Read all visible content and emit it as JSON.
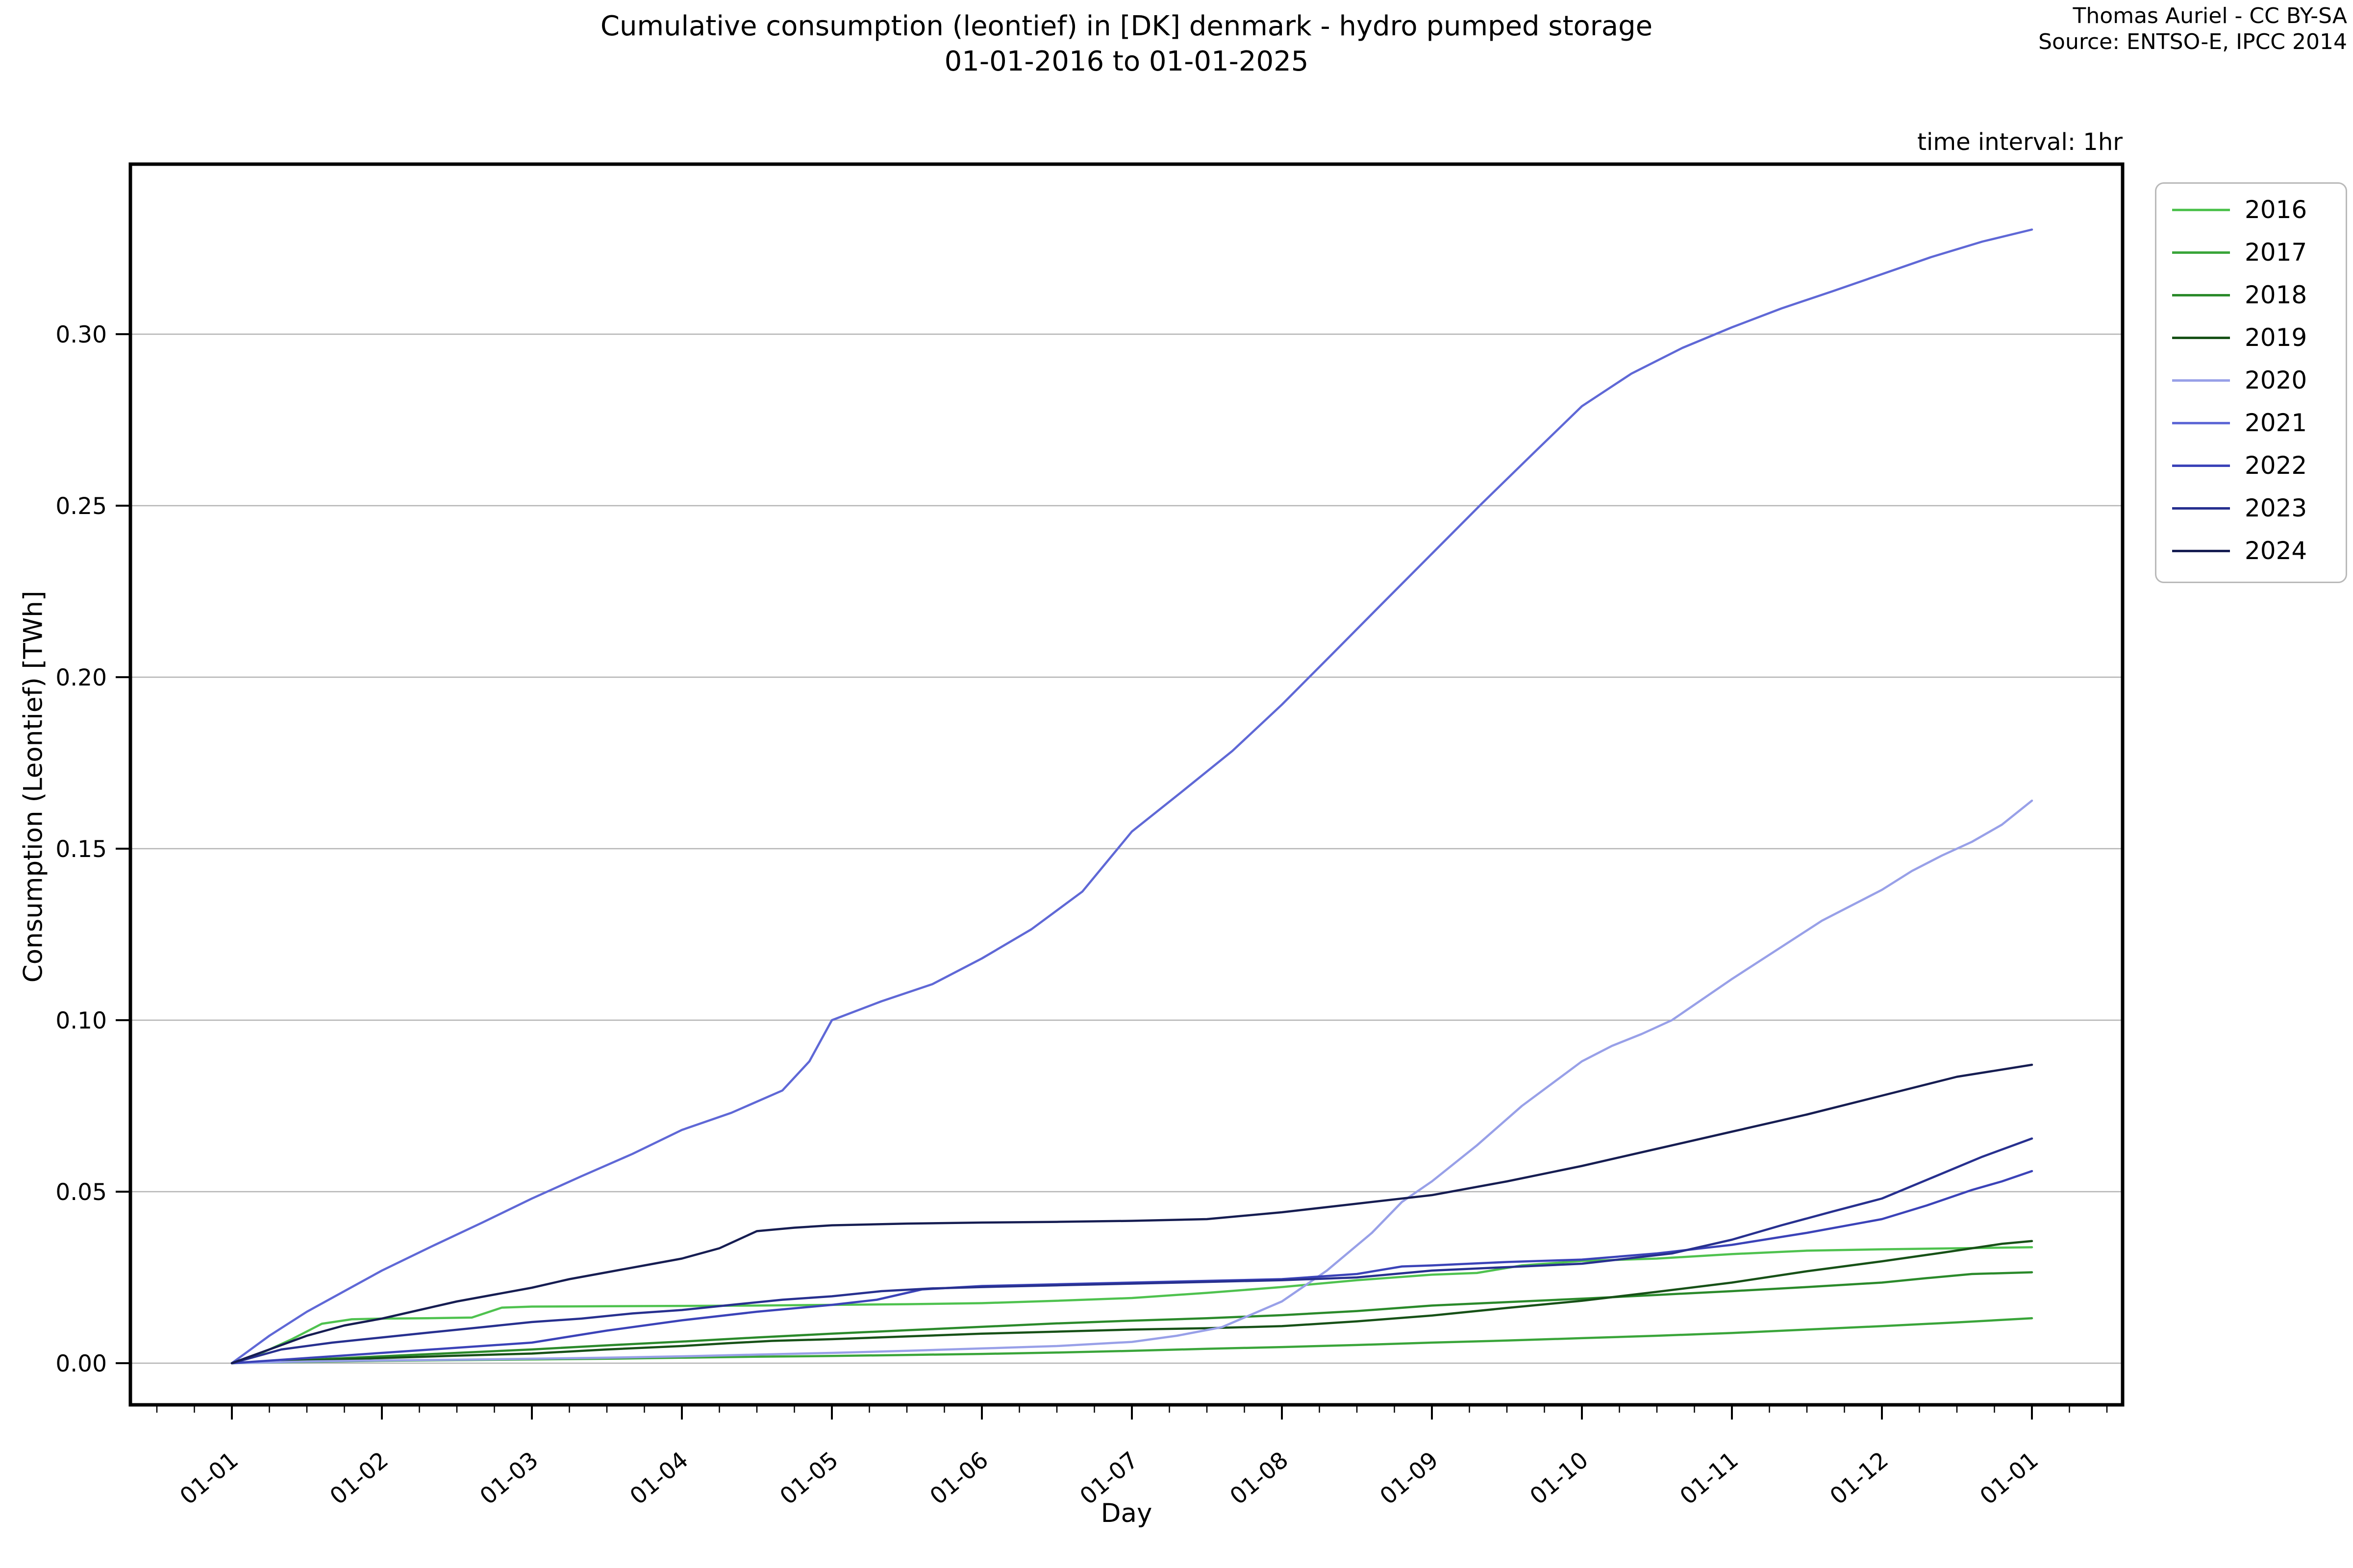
{
  "header": {
    "title_line1": "Cumulative consumption (leontief) in [DK] denmark - hydro pumped storage",
    "title_line2": "01-01-2016 to 01-01-2025",
    "attribution_line1": "Thomas Auriel - CC BY-SA",
    "attribution_line2": "Source: ENTSO-E, IPCC 2014",
    "time_interval_note": "time interval: 1hr"
  },
  "chart_data": {
    "type": "line",
    "xlabel": "Day",
    "ylabel": "Consumption (Leontief) [TWh]",
    "x_unit": "months_since_jan1",
    "x_tick_labels": [
      "01-01",
      "01-02",
      "01-03",
      "01-04",
      "01-05",
      "01-06",
      "01-07",
      "01-08",
      "01-09",
      "01-10",
      "01-11",
      "01-12",
      "01-01"
    ],
    "x_tick_months": [
      0,
      1,
      2,
      3,
      4,
      5,
      6,
      7,
      8,
      9,
      10,
      11,
      12
    ],
    "xlim_months": [
      -0.677,
      12.605
    ],
    "y_tick_labels": [
      "0.00",
      "0.05",
      "0.10",
      "0.15",
      "0.20",
      "0.25",
      "0.30"
    ],
    "y_tick_values": [
      0.0,
      0.05,
      0.1,
      0.15,
      0.2,
      0.25,
      0.3
    ],
    "ylim": [
      -0.0121,
      0.3496
    ],
    "grid": "horizontal",
    "grid_color": "#b5b5b5",
    "legend_position": "outside-upper-right",
    "series": [
      {
        "name": "2016",
        "color": "#4fc24f",
        "points": [
          [
            0,
            0
          ],
          [
            0.2,
            0.003
          ],
          [
            0.4,
            0.007
          ],
          [
            0.6,
            0.0115
          ],
          [
            0.8,
            0.0128
          ],
          [
            1,
            0.013
          ],
          [
            1.3,
            0.0131
          ],
          [
            1.6,
            0.0133
          ],
          [
            1.8,
            0.0162
          ],
          [
            2,
            0.0165
          ],
          [
            2.5,
            0.0166
          ],
          [
            3,
            0.0167
          ],
          [
            3.5,
            0.0168
          ],
          [
            4,
            0.017
          ],
          [
            4.5,
            0.0172
          ],
          [
            5,
            0.0175
          ],
          [
            5.5,
            0.0182
          ],
          [
            6,
            0.019
          ],
          [
            6.5,
            0.0205
          ],
          [
            7,
            0.0222
          ],
          [
            7.5,
            0.0242
          ],
          [
            8,
            0.0258
          ],
          [
            8.3,
            0.0263
          ],
          [
            8.6,
            0.0285
          ],
          [
            9,
            0.0298
          ],
          [
            9.5,
            0.0305
          ],
          [
            10,
            0.0318
          ],
          [
            10.5,
            0.0328
          ],
          [
            11,
            0.0332
          ],
          [
            11.5,
            0.0335
          ],
          [
            12,
            0.0338
          ]
        ]
      },
      {
        "name": "2017",
        "color": "#3aa53a",
        "points": [
          [
            0,
            0
          ],
          [
            0.5,
            0.0004
          ],
          [
            1,
            0.0007
          ],
          [
            1.5,
            0.0009
          ],
          [
            2,
            0.0011
          ],
          [
            2.5,
            0.0013
          ],
          [
            3,
            0.0016
          ],
          [
            3.5,
            0.0019
          ],
          [
            4,
            0.0021
          ],
          [
            4.5,
            0.0024
          ],
          [
            5,
            0.0027
          ],
          [
            5.5,
            0.0031
          ],
          [
            6,
            0.0036
          ],
          [
            6.5,
            0.0042
          ],
          [
            7,
            0.0047
          ],
          [
            7.5,
            0.0053
          ],
          [
            8,
            0.006
          ],
          [
            8.5,
            0.0066
          ],
          [
            9,
            0.0073
          ],
          [
            9.5,
            0.008
          ],
          [
            10,
            0.0088
          ],
          [
            10.5,
            0.0098
          ],
          [
            11,
            0.0108
          ],
          [
            11.5,
            0.0119
          ],
          [
            12,
            0.0131
          ]
        ]
      },
      {
        "name": "2018",
        "color": "#2b8a2b",
        "points": [
          [
            0,
            0
          ],
          [
            0.5,
            0.001
          ],
          [
            1,
            0.002
          ],
          [
            1.5,
            0.003
          ],
          [
            2,
            0.004
          ],
          [
            2.5,
            0.0052
          ],
          [
            3,
            0.0063
          ],
          [
            3.5,
            0.0075
          ],
          [
            4,
            0.0086
          ],
          [
            4.5,
            0.0096
          ],
          [
            5,
            0.0106
          ],
          [
            5.5,
            0.0116
          ],
          [
            6,
            0.0124
          ],
          [
            6.5,
            0.0131
          ],
          [
            7,
            0.014
          ],
          [
            7.5,
            0.0152
          ],
          [
            8,
            0.0168
          ],
          [
            8.5,
            0.0178
          ],
          [
            9,
            0.0188
          ],
          [
            9.5,
            0.0199
          ],
          [
            10,
            0.021
          ],
          [
            10.5,
            0.0222
          ],
          [
            11,
            0.0235
          ],
          [
            11.3,
            0.0248
          ],
          [
            11.6,
            0.026
          ],
          [
            12,
            0.0265
          ]
        ]
      },
      {
        "name": "2019",
        "color": "#175117",
        "points": [
          [
            0,
            0
          ],
          [
            0.5,
            0.0008
          ],
          [
            1,
            0.0015
          ],
          [
            1.5,
            0.0022
          ],
          [
            2,
            0.0028
          ],
          [
            2.5,
            0.004
          ],
          [
            3,
            0.005
          ],
          [
            3.3,
            0.0058
          ],
          [
            3.6,
            0.0065
          ],
          [
            4,
            0.007
          ],
          [
            4.5,
            0.0078
          ],
          [
            5,
            0.0086
          ],
          [
            5.5,
            0.0092
          ],
          [
            6,
            0.0098
          ],
          [
            6.5,
            0.0102
          ],
          [
            7,
            0.0108
          ],
          [
            7.5,
            0.0122
          ],
          [
            8,
            0.0139
          ],
          [
            8.5,
            0.0161
          ],
          [
            9,
            0.0182
          ],
          [
            9.5,
            0.0208
          ],
          [
            10,
            0.0235
          ],
          [
            10.5,
            0.0268
          ],
          [
            11,
            0.0297
          ],
          [
            11.4,
            0.0322
          ],
          [
            11.8,
            0.0348
          ],
          [
            12,
            0.0356
          ]
        ]
      },
      {
        "name": "2020",
        "color": "#98a0e8",
        "points": [
          [
            0,
            0
          ],
          [
            0.5,
            0.0005
          ],
          [
            1,
            0.0008
          ],
          [
            1.5,
            0.001
          ],
          [
            2,
            0.0013
          ],
          [
            2.5,
            0.0016
          ],
          [
            3,
            0.002
          ],
          [
            3.5,
            0.0025
          ],
          [
            4,
            0.003
          ],
          [
            4.5,
            0.0036
          ],
          [
            5,
            0.0043
          ],
          [
            5.5,
            0.005
          ],
          [
            6,
            0.0062
          ],
          [
            6.3,
            0.008
          ],
          [
            6.6,
            0.0105
          ],
          [
            7,
            0.018
          ],
          [
            7.3,
            0.027
          ],
          [
            7.6,
            0.038
          ],
          [
            7.8,
            0.047
          ],
          [
            8,
            0.053
          ],
          [
            8.3,
            0.0635
          ],
          [
            8.6,
            0.075
          ],
          [
            9,
            0.088
          ],
          [
            9.2,
            0.0925
          ],
          [
            9.4,
            0.096
          ],
          [
            9.6,
            0.1
          ],
          [
            9.8,
            0.106
          ],
          [
            10,
            0.112
          ],
          [
            10.3,
            0.1205
          ],
          [
            10.6,
            0.129
          ],
          [
            11,
            0.138
          ],
          [
            11.2,
            0.1435
          ],
          [
            11.4,
            0.148
          ],
          [
            11.6,
            0.152
          ],
          [
            11.8,
            0.157
          ],
          [
            12,
            0.164
          ]
        ]
      },
      {
        "name": "2021",
        "color": "#5f68d6",
        "points": [
          [
            0,
            0
          ],
          [
            0.25,
            0.008
          ],
          [
            0.5,
            0.015
          ],
          [
            0.75,
            0.021
          ],
          [
            1,
            0.027
          ],
          [
            1.33,
            0.034
          ],
          [
            1.67,
            0.041
          ],
          [
            2,
            0.048
          ],
          [
            2.33,
            0.0545
          ],
          [
            2.67,
            0.061
          ],
          [
            3,
            0.068
          ],
          [
            3.33,
            0.073
          ],
          [
            3.67,
            0.0795
          ],
          [
            3.85,
            0.088
          ],
          [
            4,
            0.1
          ],
          [
            4.33,
            0.1055
          ],
          [
            4.67,
            0.1105
          ],
          [
            5,
            0.118
          ],
          [
            5.33,
            0.1265
          ],
          [
            5.67,
            0.1375
          ],
          [
            6,
            0.155
          ],
          [
            6.33,
            0.1665
          ],
          [
            6.67,
            0.1785
          ],
          [
            7,
            0.192
          ],
          [
            7.33,
            0.2065
          ],
          [
            7.67,
            0.2215
          ],
          [
            8,
            0.236
          ],
          [
            8.33,
            0.2505
          ],
          [
            8.67,
            0.265
          ],
          [
            9,
            0.279
          ],
          [
            9.33,
            0.2885
          ],
          [
            9.67,
            0.296
          ],
          [
            10,
            0.302
          ],
          [
            10.33,
            0.3075
          ],
          [
            10.67,
            0.3125
          ],
          [
            11,
            0.3175
          ],
          [
            11.33,
            0.3225
          ],
          [
            11.67,
            0.327
          ],
          [
            12,
            0.3305
          ]
        ]
      },
      {
        "name": "2022",
        "color": "#3b43b8",
        "points": [
          [
            0,
            0
          ],
          [
            0.5,
            0.0015
          ],
          [
            1,
            0.003
          ],
          [
            1.5,
            0.0045
          ],
          [
            2,
            0.006
          ],
          [
            2.5,
            0.0095
          ],
          [
            3,
            0.0125
          ],
          [
            3.5,
            0.015
          ],
          [
            4,
            0.017
          ],
          [
            4.3,
            0.0185
          ],
          [
            4.6,
            0.0215
          ],
          [
            5,
            0.0225
          ],
          [
            5.5,
            0.023
          ],
          [
            6,
            0.0235
          ],
          [
            6.5,
            0.024
          ],
          [
            7,
            0.0245
          ],
          [
            7.5,
            0.026
          ],
          [
            7.8,
            0.0282
          ],
          [
            8,
            0.0285
          ],
          [
            8.5,
            0.0295
          ],
          [
            9,
            0.0302
          ],
          [
            9.5,
            0.032
          ],
          [
            10,
            0.0345
          ],
          [
            10.5,
            0.038
          ],
          [
            11,
            0.042
          ],
          [
            11.3,
            0.046
          ],
          [
            11.6,
            0.0505
          ],
          [
            11.8,
            0.053
          ],
          [
            12,
            0.056
          ]
        ]
      },
      {
        "name": "2023",
        "color": "#27308f",
        "points": [
          [
            0,
            0
          ],
          [
            0.33,
            0.004
          ],
          [
            0.67,
            0.006
          ],
          [
            1,
            0.0075
          ],
          [
            1.33,
            0.009
          ],
          [
            1.67,
            0.0105
          ],
          [
            2,
            0.012
          ],
          [
            2.33,
            0.013
          ],
          [
            2.67,
            0.0145
          ],
          [
            3,
            0.0155
          ],
          [
            3.33,
            0.017
          ],
          [
            3.67,
            0.0185
          ],
          [
            4,
            0.0195
          ],
          [
            4.33,
            0.021
          ],
          [
            4.67,
            0.0218
          ],
          [
            5,
            0.0222
          ],
          [
            5.5,
            0.0227
          ],
          [
            6,
            0.0232
          ],
          [
            6.5,
            0.0237
          ],
          [
            7,
            0.0242
          ],
          [
            7.5,
            0.025
          ],
          [
            8,
            0.027
          ],
          [
            8.5,
            0.028
          ],
          [
            9,
            0.029
          ],
          [
            9.3,
            0.0305
          ],
          [
            9.6,
            0.032
          ],
          [
            9.8,
            0.034
          ],
          [
            10,
            0.036
          ],
          [
            10.33,
            0.0402
          ],
          [
            10.67,
            0.0442
          ],
          [
            11,
            0.048
          ],
          [
            11.33,
            0.054
          ],
          [
            11.67,
            0.0602
          ],
          [
            12,
            0.0655
          ]
        ]
      },
      {
        "name": "2024",
        "color": "#161d52",
        "points": [
          [
            0,
            0
          ],
          [
            0.25,
            0.004
          ],
          [
            0.5,
            0.008
          ],
          [
            0.75,
            0.011
          ],
          [
            1,
            0.013
          ],
          [
            1.25,
            0.0155
          ],
          [
            1.5,
            0.018
          ],
          [
            1.75,
            0.02
          ],
          [
            2,
            0.022
          ],
          [
            2.25,
            0.0245
          ],
          [
            2.5,
            0.0265
          ],
          [
            2.75,
            0.0285
          ],
          [
            3,
            0.0305
          ],
          [
            3.25,
            0.0335
          ],
          [
            3.5,
            0.0385
          ],
          [
            3.75,
            0.0395
          ],
          [
            4,
            0.0402
          ],
          [
            4.5,
            0.0407
          ],
          [
            5,
            0.041
          ],
          [
            5.5,
            0.0412
          ],
          [
            6,
            0.0415
          ],
          [
            6.5,
            0.042
          ],
          [
            7,
            0.044
          ],
          [
            7.5,
            0.0465
          ],
          [
            8,
            0.049
          ],
          [
            8.5,
            0.053
          ],
          [
            9,
            0.0575
          ],
          [
            9.5,
            0.0625
          ],
          [
            10,
            0.0675
          ],
          [
            10.5,
            0.0725
          ],
          [
            11,
            0.078
          ],
          [
            11.5,
            0.0835
          ],
          [
            12,
            0.087
          ]
        ]
      }
    ]
  }
}
